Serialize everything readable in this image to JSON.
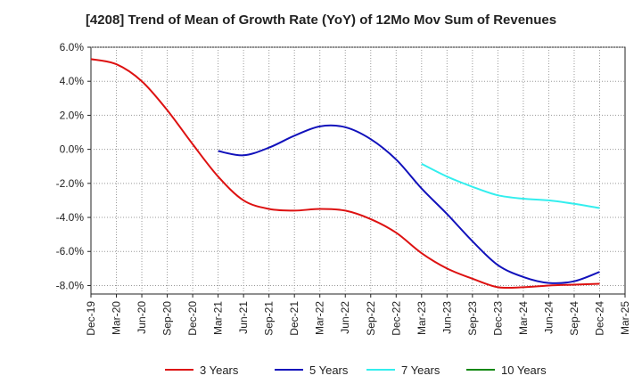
{
  "chart_data": {
    "type": "line",
    "title": "[4208]  Trend of Mean of Growth Rate (YoY) of 12Mo Mov Sum of Revenues",
    "xlabel": "",
    "ylabel": "",
    "ylim": [
      -8.5,
      6.0
    ],
    "yticks": [
      6.0,
      4.0,
      2.0,
      0.0,
      -2.0,
      -4.0,
      -6.0,
      -8.0
    ],
    "ytick_labels": [
      "6.0%",
      "4.0%",
      "2.0%",
      "0.0%",
      "-2.0%",
      "-4.0%",
      "-6.0%",
      "-8.0%"
    ],
    "categories": [
      "Dec-19",
      "Mar-20",
      "Jun-20",
      "Sep-20",
      "Dec-20",
      "Mar-21",
      "Jun-21",
      "Sep-21",
      "Dec-21",
      "Mar-22",
      "Jun-22",
      "Sep-22",
      "Dec-22",
      "Mar-23",
      "Jun-23",
      "Sep-23",
      "Dec-23",
      "Mar-24",
      "Jun-24",
      "Sep-24",
      "Dec-24",
      "Mar-25"
    ],
    "grid": true,
    "legend_position": "bottom",
    "series": [
      {
        "name": "3 Years",
        "color": "#dd1111",
        "values": [
          5.3,
          5.0,
          4.0,
          2.3,
          0.3,
          -1.6,
          -3.0,
          -3.5,
          -3.6,
          -3.5,
          -3.6,
          -4.1,
          -4.9,
          -6.1,
          -7.0,
          -7.6,
          -8.1,
          -8.1,
          -8.0,
          -7.95,
          -7.9,
          null
        ]
      },
      {
        "name": "5 Years",
        "color": "#1111bb",
        "values": [
          null,
          null,
          null,
          null,
          null,
          -0.1,
          -0.35,
          0.1,
          0.8,
          1.35,
          1.3,
          0.6,
          -0.6,
          -2.3,
          -3.8,
          -5.4,
          -6.8,
          -7.5,
          -7.85,
          -7.75,
          -7.2,
          null
        ]
      },
      {
        "name": "7 Years",
        "color": "#33eeee",
        "values": [
          null,
          null,
          null,
          null,
          null,
          null,
          null,
          null,
          null,
          null,
          null,
          null,
          null,
          -0.85,
          -1.6,
          -2.2,
          -2.7,
          -2.9,
          -3.0,
          -3.2,
          -3.45,
          null
        ]
      },
      {
        "name": "10 Years",
        "color": "#118811",
        "values": [
          null,
          null,
          null,
          null,
          null,
          null,
          null,
          null,
          null,
          null,
          null,
          null,
          null,
          null,
          null,
          null,
          null,
          null,
          null,
          null,
          null,
          null
        ]
      }
    ]
  }
}
